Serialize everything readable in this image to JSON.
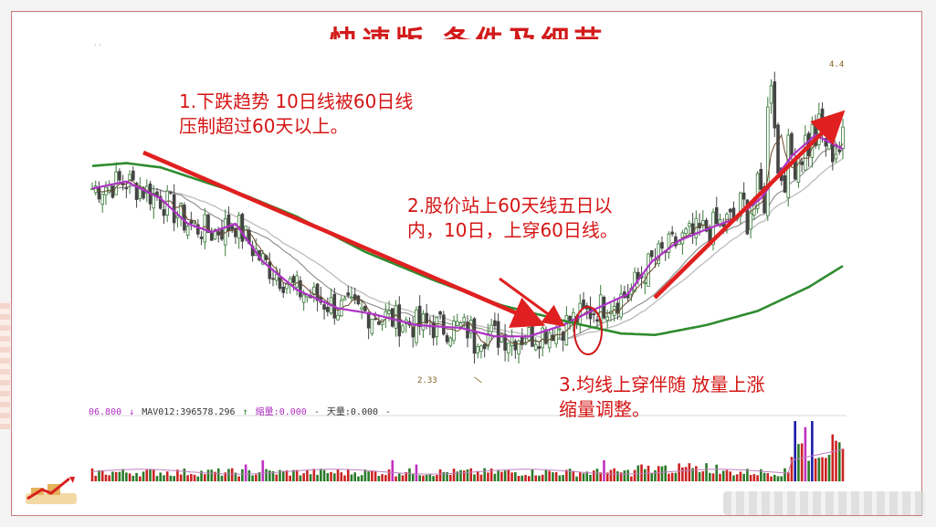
{
  "title": "快速版  条件及细节",
  "annotations": {
    "a1": [
      "1.下跌趋势 10日线被60日线",
      "压制超过60天以上。"
    ],
    "a2": [
      "2.股价站上60天线五日以",
      "内，10日，上穿60日线。"
    ],
    "a3": [
      "3.均线上穿伴随 放量上涨",
      "缩量调整。"
    ]
  },
  "labels": {
    "low_price": "2.33",
    "peak_price": "4.4",
    "control": "· ·"
  },
  "volume_info": {
    "left_value": "06.800",
    "mav_label": "MAV012:396578.296",
    "shrink_label": "缩量:0.000",
    "sky_label": "天量:0.000"
  },
  "colors": {
    "title": "#d21a1a",
    "annotation": "#d51414",
    "arrow": "#e02020",
    "candle_up": "#3a7a3a",
    "candle_down": "#444444",
    "ma5": "#6b4a2e",
    "ma10": "#b032c8",
    "ma20": "#8a8a8a",
    "ma30": "#c0c0c0",
    "ma60": "#2e8b2e",
    "vol_up": "#cc2222",
    "vol_down": "#2a7a2a",
    "vol_blue": "#1a1aa8",
    "vol_magenta": "#c030c0",
    "circle": "#d01818"
  },
  "chart_data": {
    "type": "candlestick",
    "title": "",
    "xlabel": "",
    "ylabel": "",
    "ylim": [
      2.2,
      4.6
    ],
    "series": [
      {
        "name": "MA10",
        "points": [
          [
            0,
            3.67
          ],
          [
            10,
            3.72
          ],
          [
            20,
            3.6
          ],
          [
            28,
            3.42
          ],
          [
            35,
            3.36
          ],
          [
            42,
            3.42
          ],
          [
            50,
            3.15
          ],
          [
            60,
            2.95
          ],
          [
            72,
            2.82
          ],
          [
            82,
            2.78
          ],
          [
            95,
            2.7
          ],
          [
            108,
            2.68
          ],
          [
            118,
            2.62
          ],
          [
            128,
            2.62
          ],
          [
            138,
            2.7
          ],
          [
            148,
            2.82
          ],
          [
            157,
            2.92
          ],
          [
            164,
            3.15
          ],
          [
            172,
            3.3
          ],
          [
            180,
            3.38
          ],
          [
            188,
            3.45
          ],
          [
            196,
            3.6
          ],
          [
            205,
            3.9
          ],
          [
            212,
            4.05
          ],
          [
            220,
            3.95
          ]
        ]
      },
      {
        "name": "MA60",
        "points": [
          [
            0,
            3.83
          ],
          [
            10,
            3.85
          ],
          [
            20,
            3.82
          ],
          [
            30,
            3.74
          ],
          [
            45,
            3.62
          ],
          [
            60,
            3.47
          ],
          [
            80,
            3.22
          ],
          [
            100,
            3.02
          ],
          [
            120,
            2.84
          ],
          [
            140,
            2.72
          ],
          [
            155,
            2.64
          ],
          [
            165,
            2.63
          ],
          [
            180,
            2.7
          ],
          [
            195,
            2.8
          ],
          [
            210,
            2.97
          ],
          [
            220,
            3.12
          ]
        ]
      }
    ],
    "low": 2.33,
    "high": 4.4
  }
}
